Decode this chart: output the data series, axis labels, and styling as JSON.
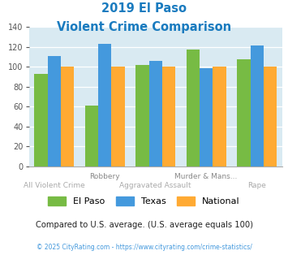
{
  "title_line1": "2019 El Paso",
  "title_line2": "Violent Crime Comparison",
  "title_color": "#1a7bbf",
  "el_paso": [
    93,
    61,
    102,
    117,
    107
  ],
  "texas": [
    111,
    123,
    106,
    98,
    121
  ],
  "national": [
    100,
    100,
    100,
    100,
    100
  ],
  "el_paso_color": "#77bb44",
  "texas_color": "#4499dd",
  "national_color": "#ffaa33",
  "bg_color": "#d9eaf2",
  "ylim": [
    0,
    140
  ],
  "yticks": [
    0,
    20,
    40,
    60,
    80,
    100,
    120,
    140
  ],
  "legend_labels": [
    "El Paso",
    "Texas",
    "National"
  ],
  "labels_top": [
    "",
    "Robbery",
    "",
    "Murder & Mans...",
    ""
  ],
  "labels_bottom": [
    "All Violent Crime",
    "",
    "Aggravated Assault",
    "",
    "Rape"
  ],
  "footnote1": "Compared to U.S. average. (U.S. average equals 100)",
  "footnote2": "© 2025 CityRating.com - https://www.cityrating.com/crime-statistics/",
  "footnote1_color": "#333333",
  "footnote2_color": "#4499dd",
  "footnote2_prefix_color": "#888888",
  "bar_width": 0.26,
  "n_groups": 5
}
